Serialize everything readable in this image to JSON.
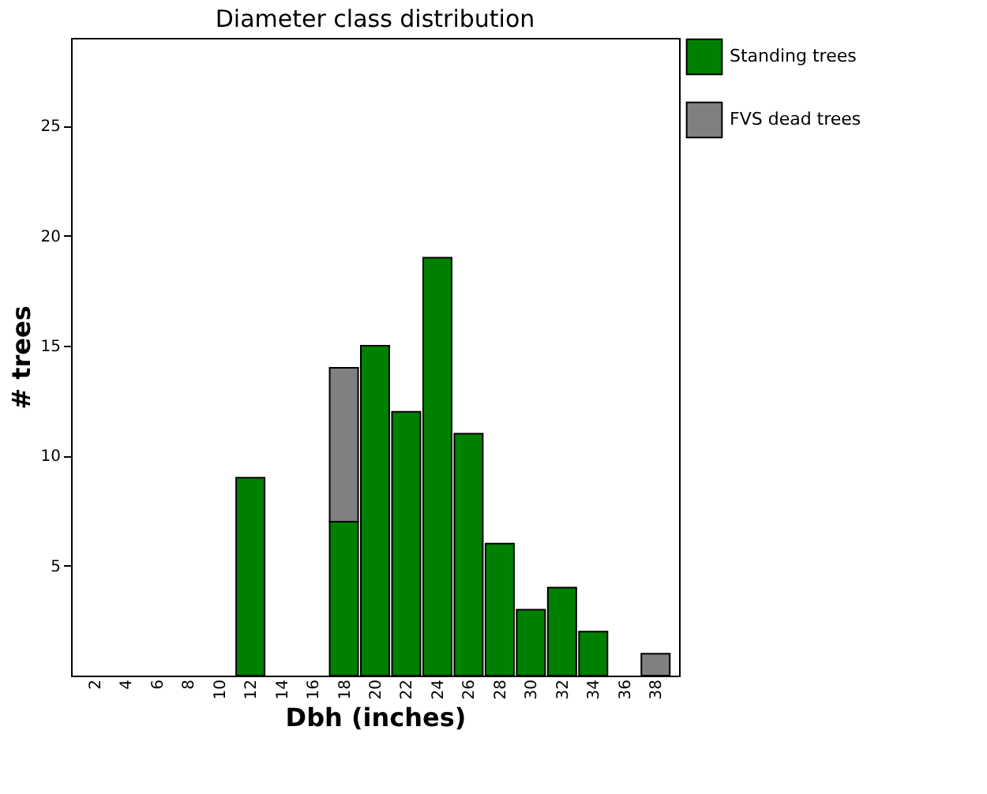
{
  "chart_data": {
    "type": "bar",
    "title": "Diameter class distribution",
    "xlabel": "Dbh (inches)",
    "ylabel": "# trees",
    "categories": [
      "2",
      "4",
      "6",
      "8",
      "10",
      "12",
      "14",
      "16",
      "18",
      "20",
      "22",
      "24",
      "26",
      "28",
      "30",
      "32",
      "34",
      "36",
      "38"
    ],
    "stacked": true,
    "series": [
      {
        "name": "Standing trees",
        "color": "#008000",
        "values": [
          null,
          null,
          null,
          null,
          null,
          9,
          null,
          null,
          7,
          15,
          12,
          19,
          11,
          6,
          3,
          4,
          2,
          null,
          null
        ]
      },
      {
        "name": "FVS dead trees",
        "color": "#808080",
        "values": [
          null,
          null,
          null,
          null,
          null,
          null,
          null,
          null,
          7,
          null,
          null,
          null,
          null,
          null,
          null,
          null,
          null,
          null,
          1
        ]
      }
    ],
    "ylim": [
      0,
      29
    ],
    "yticks": [
      5,
      10,
      15,
      20,
      25
    ],
    "grid": false,
    "legend": "right"
  }
}
